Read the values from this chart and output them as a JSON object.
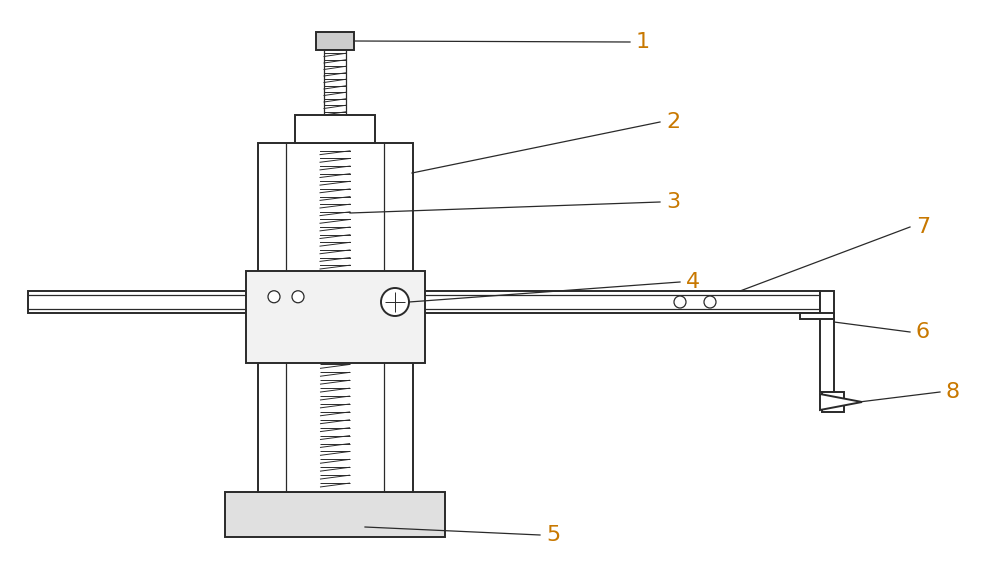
{
  "bg_color": "#ffffff",
  "line_color": "#2a2a2a",
  "label_color": "#c87800",
  "fig_width": 10.0,
  "fig_height": 5.87,
  "label_fontsize": 16,
  "lw_main": 1.4,
  "lw_thin": 0.9,
  "lw_screw": 0.7
}
